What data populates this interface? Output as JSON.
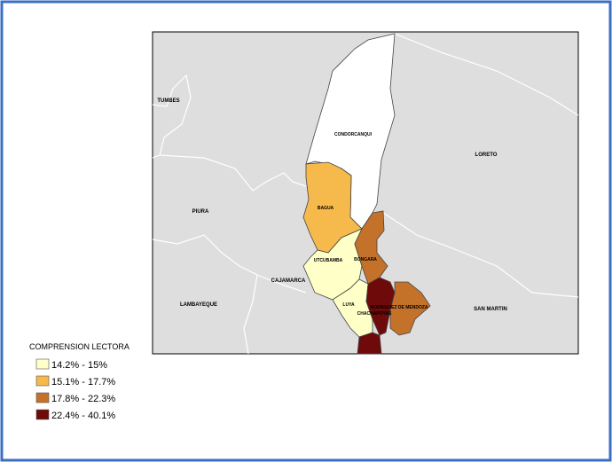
{
  "map": {
    "background_labels": [
      {
        "label": "TUMBES"
      },
      {
        "label": "PIURA"
      },
      {
        "label": "LAMBAYEQUE"
      },
      {
        "label": "CAJAMARCA"
      },
      {
        "label": "LORETO"
      },
      {
        "label": "SAN MARTIN"
      }
    ],
    "provinces": [
      {
        "label": "CONDORCANQUI",
        "color": "#ffffff"
      },
      {
        "label": "BAGUA",
        "color": "#f6b94c"
      },
      {
        "label": "UTCUBAMBA",
        "color": "#ffffc8"
      },
      {
        "label": "BONGARA",
        "color": "#c4712a"
      },
      {
        "label": "LUYA",
        "color": "#ffffc8"
      },
      {
        "label": "CHACHAPOYAS",
        "color": "#6e0a0a"
      },
      {
        "label": "RODRIGUEZ DE MENDOZA",
        "color": "#c4712a"
      },
      {
        "label": null,
        "color": "#6e0a0a"
      }
    ]
  },
  "legend": {
    "title": "COMPRENSION LECTORA",
    "items": [
      {
        "label": "14.2% - 15%",
        "color": "#ffffc8"
      },
      {
        "label": "15.1% - 17.7%",
        "color": "#f6b94c"
      },
      {
        "label": "17.8% - 22.3%",
        "color": "#c4712a"
      },
      {
        "label": "22.4% - 40.1%",
        "color": "#6e0a0a"
      }
    ]
  }
}
